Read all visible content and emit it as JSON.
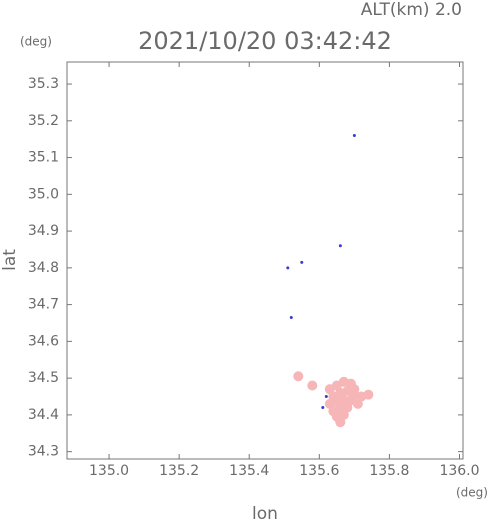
{
  "chart_data": {
    "type": "scatter",
    "title": "2021/10/20 03:42:42",
    "subtitle": "ALT(km) 2.0",
    "y_unit": "(deg)",
    "x_unit": "(deg)",
    "xlabel": "lon",
    "ylabel": "lat",
    "xlim": [
      134.88,
      136.01
    ],
    "ylim": [
      34.28,
      35.36
    ],
    "xticks": [
      {
        "value": 135,
        "label": "135.0"
      },
      135.2,
      135.4,
      135.6,
      135.8,
      {
        "value": 136,
        "label": "136.0"
      }
    ],
    "yticks": [
      34.3,
      34.4,
      34.5,
      34.6,
      34.7,
      34.8,
      34.9,
      {
        "value": 35,
        "label": "35.0"
      },
      35.1,
      35.2,
      35.3
    ],
    "series": [
      {
        "color": "#3a3acc",
        "size": 1.5,
        "x": [
          135.7,
          135.66,
          135.51,
          135.55,
          135.52,
          135.69,
          135.62,
          135.61,
          135.64
        ],
        "values": [
          35.16,
          34.86,
          34.8,
          34.815,
          34.665,
          34.49,
          34.45,
          34.42,
          34.47
        ]
      },
      {
        "color": "#f6b6b8",
        "size": 5,
        "x": [
          135.54,
          135.58,
          135.63,
          135.65,
          135.67,
          135.69,
          135.7,
          135.64,
          135.66,
          135.68,
          135.7,
          135.72,
          135.63,
          135.65,
          135.67,
          135.69,
          135.71,
          135.64,
          135.66,
          135.68,
          135.65,
          135.67,
          135.66,
          135.74
        ],
        "values": [
          34.505,
          34.48,
          34.47,
          34.48,
          34.49,
          34.485,
          34.47,
          34.45,
          34.46,
          34.465,
          34.455,
          34.45,
          34.43,
          34.435,
          34.44,
          34.44,
          34.43,
          34.41,
          34.415,
          34.42,
          34.395,
          34.4,
          34.38,
          34.455
        ]
      }
    ]
  }
}
